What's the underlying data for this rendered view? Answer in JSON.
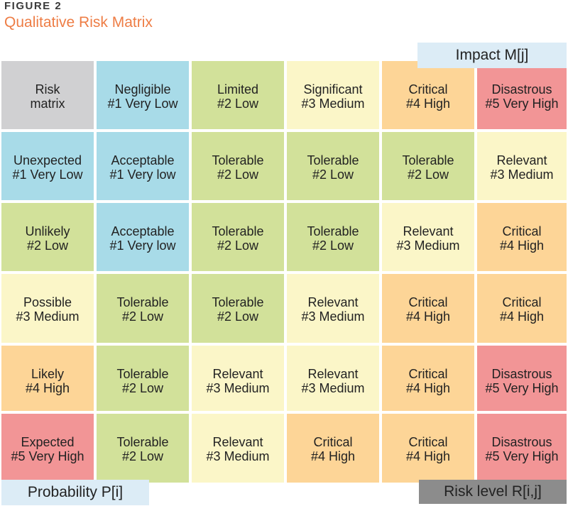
{
  "figure": {
    "label": "FIGURE 2",
    "title": "Qualitative Risk Matrix"
  },
  "tags": {
    "impact": "Impact M[j]",
    "probability": "Probability P[i]",
    "risk_level": "Risk level R[i,j]"
  },
  "colors": {
    "grey": "#d0d0d2",
    "blue": "#a8dbe8",
    "green": "#d2e19a",
    "yellow": "#fbf6c8",
    "orange": "#fdd597",
    "red": "#f29596",
    "title_orange": "#ee7d45",
    "tag_light": "#dcecf6",
    "tag_dark": "#8c8c8c"
  },
  "matrix": {
    "rows": [
      {
        "cells": [
          {
            "l1": "Risk",
            "l2": "matrix",
            "color": "grey"
          },
          {
            "l1": "Negligible",
            "l2": "#1 Very Low",
            "color": "blue"
          },
          {
            "l1": "Limited",
            "l2": "#2 Low",
            "color": "green"
          },
          {
            "l1": "Significant",
            "l2": "#3 Medium",
            "color": "yellow"
          },
          {
            "l1": "Critical",
            "l2": "#4 High",
            "color": "orange"
          },
          {
            "l1": "Disastrous",
            "l2": "#5 Very High",
            "color": "red"
          }
        ]
      },
      {
        "cells": [
          {
            "l1": "Unexpected",
            "l2": "#1 Very Low",
            "color": "blue"
          },
          {
            "l1": "Acceptable",
            "l2": "#1 Very low",
            "color": "blue"
          },
          {
            "l1": "Tolerable",
            "l2": "#2 Low",
            "color": "green"
          },
          {
            "l1": "Tolerable",
            "l2": "#2 Low",
            "color": "green"
          },
          {
            "l1": "Tolerable",
            "l2": "#2 Low",
            "color": "green"
          },
          {
            "l1": "Relevant",
            "l2": "#3 Medium",
            "color": "yellow"
          }
        ]
      },
      {
        "cells": [
          {
            "l1": "Unlikely",
            "l2": "#2 Low",
            "color": "green"
          },
          {
            "l1": "Acceptable",
            "l2": "#1 Very low",
            "color": "blue"
          },
          {
            "l1": "Tolerable",
            "l2": "#2 Low",
            "color": "green"
          },
          {
            "l1": "Tolerable",
            "l2": "#2 Low",
            "color": "green"
          },
          {
            "l1": "Relevant",
            "l2": "#3 Medium",
            "color": "yellow"
          },
          {
            "l1": "Critical",
            "l2": "#4 High",
            "color": "orange"
          }
        ]
      },
      {
        "cells": [
          {
            "l1": "Possible",
            "l2": "#3 Medium",
            "color": "yellow"
          },
          {
            "l1": "Tolerable",
            "l2": "#2 Low",
            "color": "green"
          },
          {
            "l1": "Tolerable",
            "l2": "#2 Low",
            "color": "green"
          },
          {
            "l1": "Relevant",
            "l2": "#3 Medium",
            "color": "yellow"
          },
          {
            "l1": "Critical",
            "l2": "#4 High",
            "color": "orange"
          },
          {
            "l1": "Critical",
            "l2": "#4 High",
            "color": "orange"
          }
        ]
      },
      {
        "cells": [
          {
            "l1": "Likely",
            "l2": "#4 High",
            "color": "orange"
          },
          {
            "l1": "Tolerable",
            "l2": "#2 Low",
            "color": "green"
          },
          {
            "l1": "Relevant",
            "l2": "#3 Medium",
            "color": "yellow"
          },
          {
            "l1": "Relevant",
            "l2": "#3 Medium",
            "color": "yellow"
          },
          {
            "l1": "Critical",
            "l2": "#4 High",
            "color": "orange"
          },
          {
            "l1": "Disastrous",
            "l2": "#5 Very High",
            "color": "red"
          }
        ]
      },
      {
        "cells": [
          {
            "l1": "Expected",
            "l2": "#5 Very High",
            "color": "red"
          },
          {
            "l1": "Tolerable",
            "l2": "#2 Low",
            "color": "green"
          },
          {
            "l1": "Relevant",
            "l2": "#3 Medium",
            "color": "yellow"
          },
          {
            "l1": "Critical",
            "l2": "#4 High",
            "color": "orange"
          },
          {
            "l1": "Critical",
            "l2": "#4 High",
            "color": "orange"
          },
          {
            "l1": "Disastrous",
            "l2": "#5 Very High",
            "color": "red"
          }
        ]
      }
    ]
  }
}
